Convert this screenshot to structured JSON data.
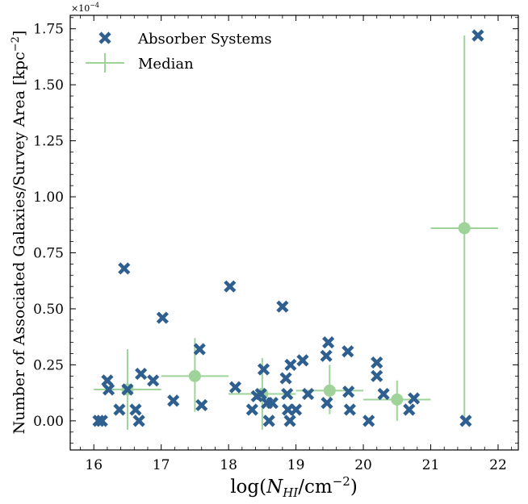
{
  "chart_data": {
    "type": "scatter",
    "xlabel": "log(N_HI/cm^-2)",
    "xlabel_main": "log(",
    "xlabel_N": "N",
    "xlabel_sub": "HI",
    "xlabel_unit": "/cm",
    "xlabel_exp": "−2",
    "xlabel_close": ")",
    "ylabel": "Number of Associated Galaxies/Survey Area [kpc^-2]",
    "ylabel_main": "Number of Associated Galaxies/Survey Area [kpc",
    "ylabel_exp": "−2",
    "ylabel_close": "]",
    "y_scale_label": "×10",
    "y_scale_exp": "−4",
    "xlim": [
      15.65,
      22.3
    ],
    "ylim": [
      -0.13,
      1.81
    ],
    "x_ticks": [
      16,
      17,
      18,
      19,
      20,
      21,
      22
    ],
    "y_ticks": [
      0.0,
      0.25,
      0.5,
      0.75,
      1.0,
      1.25,
      1.5,
      1.75
    ],
    "y_tick_labels": [
      "0.00",
      "0.25",
      "0.50",
      "0.75",
      "1.00",
      "1.25",
      "1.50",
      "1.75"
    ],
    "legend": {
      "placement": "top-left",
      "items": [
        "Absorber Systems",
        "Median"
      ]
    },
    "colors": {
      "absorber": "#2f5f8f",
      "median": "#9fd39a"
    },
    "series": [
      {
        "name": "Absorber Systems",
        "marker": "x",
        "points": [
          [
            16.07,
            0.0
          ],
          [
            16.12,
            0.0
          ],
          [
            16.2,
            0.18
          ],
          [
            16.22,
            0.14
          ],
          [
            16.38,
            0.05
          ],
          [
            16.45,
            0.68
          ],
          [
            16.5,
            0.14
          ],
          [
            16.62,
            0.05
          ],
          [
            16.67,
            0.0
          ],
          [
            16.7,
            0.21
          ],
          [
            16.88,
            0.18
          ],
          [
            17.02,
            0.46
          ],
          [
            17.18,
            0.09
          ],
          [
            17.57,
            0.32
          ],
          [
            17.6,
            0.07
          ],
          [
            18.02,
            0.6
          ],
          [
            18.1,
            0.15
          ],
          [
            18.35,
            0.05
          ],
          [
            18.42,
            0.11
          ],
          [
            18.48,
            0.12
          ],
          [
            18.52,
            0.23
          ],
          [
            18.57,
            0.08
          ],
          [
            18.6,
            0.0
          ],
          [
            18.65,
            0.08
          ],
          [
            18.8,
            0.51
          ],
          [
            18.85,
            0.19
          ],
          [
            18.87,
            0.12
          ],
          [
            18.88,
            0.05
          ],
          [
            18.91,
            0.0
          ],
          [
            18.92,
            0.25
          ],
          [
            19.0,
            0.05
          ],
          [
            19.1,
            0.27
          ],
          [
            19.18,
            0.12
          ],
          [
            19.45,
            0.29
          ],
          [
            19.48,
            0.35
          ],
          [
            19.46,
            0.08
          ],
          [
            19.77,
            0.31
          ],
          [
            19.78,
            0.13
          ],
          [
            19.8,
            0.05
          ],
          [
            20.08,
            0.0
          ],
          [
            20.2,
            0.26
          ],
          [
            20.2,
            0.2
          ],
          [
            20.3,
            0.12
          ],
          [
            20.68,
            0.05
          ],
          [
            20.75,
            0.1
          ],
          [
            21.52,
            0.0
          ],
          [
            21.7,
            1.72
          ]
        ]
      },
      {
        "name": "Median",
        "marker": "o",
        "points": [
          {
            "x": 16.5,
            "y": 0.14,
            "xerr": 0.5,
            "ylo": -0.04,
            "yhi": 0.32
          },
          {
            "x": 17.5,
            "y": 0.2,
            "xerr": 0.5,
            "ylo": 0.04,
            "yhi": 0.37
          },
          {
            "x": 18.5,
            "y": 0.12,
            "xerr": 0.5,
            "ylo": -0.04,
            "yhi": 0.28
          },
          {
            "x": 19.5,
            "y": 0.135,
            "xerr": 0.5,
            "ylo": 0.03,
            "yhi": 0.25
          },
          {
            "x": 20.5,
            "y": 0.095,
            "xerr": 0.5,
            "ylo": 0.0,
            "yhi": 0.18
          },
          {
            "x": 21.5,
            "y": 0.86,
            "xerr": 0.5,
            "ylo": 0.0,
            "yhi": 1.72
          }
        ]
      }
    ]
  }
}
